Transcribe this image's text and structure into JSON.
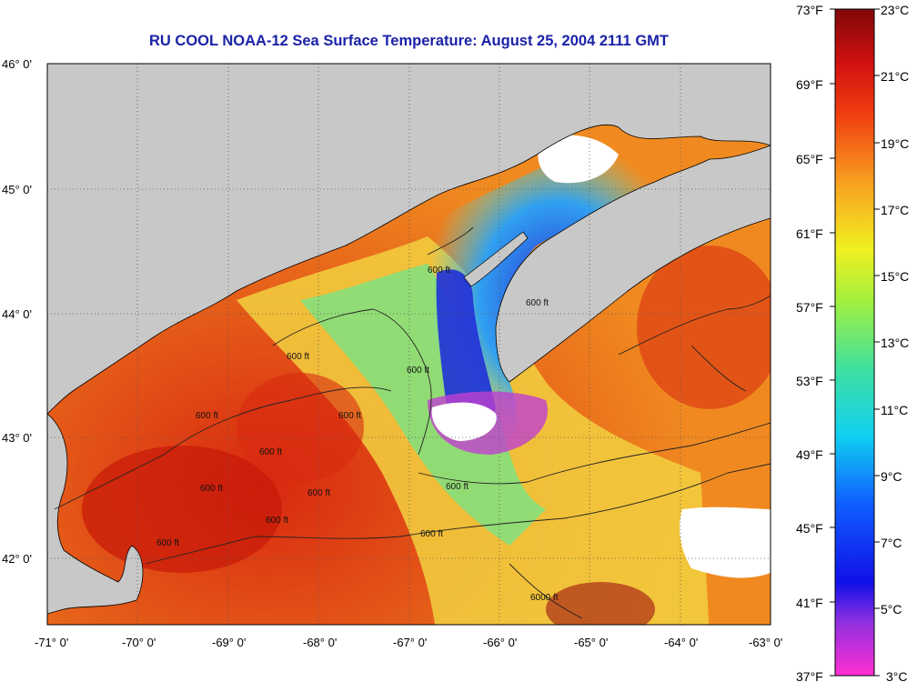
{
  "title": "RU COOL  NOAA-12  Sea Surface Temperature:  August 25, 2004 2111 GMT",
  "axes": {
    "lon_ticks": [
      "-71° 0'",
      "-70° 0'",
      "-69° 0'",
      "-68° 0'",
      "-67° 0'",
      "-66° 0'",
      "-65° 0'",
      "-64° 0'",
      "-63° 0'"
    ],
    "lat_ticks": [
      "46° 0'",
      "45° 0'",
      "44° 0'",
      "43° 0'",
      "42° 0'"
    ]
  },
  "contour_labels": [
    "600 ft",
    "600 ft",
    "600 ft",
    "600 ft",
    "600 ft",
    "600 ft",
    "600 ft",
    "600 ft",
    "600 ft",
    "600 ft",
    "600 ft",
    "600 ft",
    "600 ft",
    "6000 ft"
  ],
  "colorbar": {
    "fahrenheit": [
      "73°F",
      "69°F",
      "65°F",
      "61°F",
      "57°F",
      "53°F",
      "49°F",
      "45°F",
      "41°F",
      "37°F"
    ],
    "celsius": [
      "23°C",
      "21°C",
      "19°C",
      "17°C",
      "15°C",
      "13°C",
      "11°C",
      "9°C",
      "7°C",
      "5°C",
      "3°C"
    ]
  },
  "colors": {
    "title": "#1a22a8",
    "land": "#c8c8c8",
    "cloud": "#ffffff",
    "warm": "#e8401a",
    "cold": "#1a2bd8"
  }
}
